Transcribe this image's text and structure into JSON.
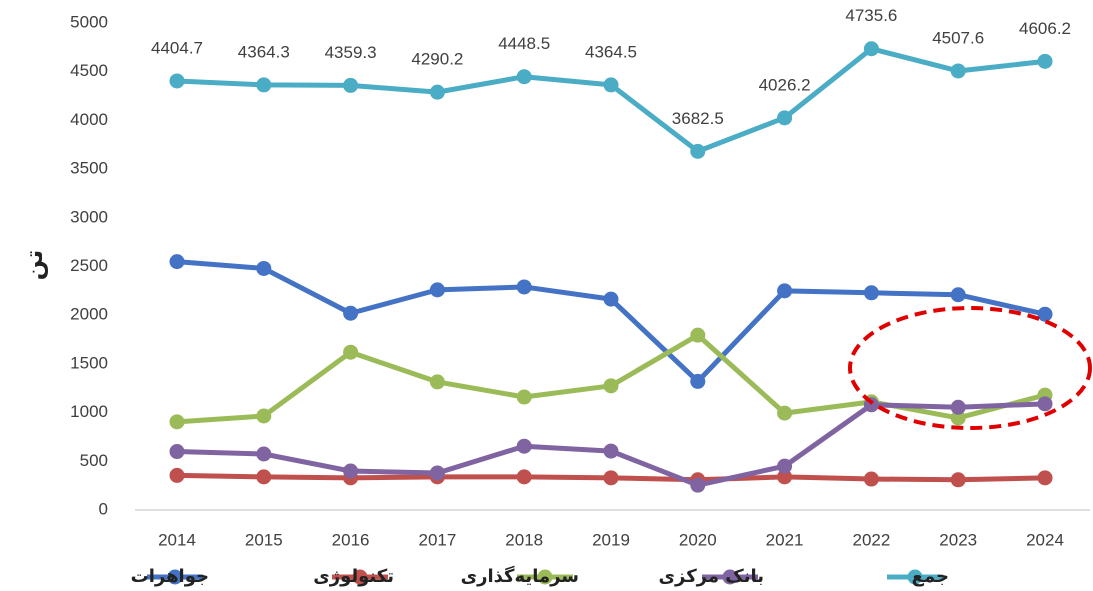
{
  "chart_data": {
    "type": "line",
    "y_label": "تن",
    "x": [
      2014,
      2015,
      2016,
      2017,
      2018,
      2019,
      2020,
      2021,
      2022,
      2023,
      2024
    ],
    "ylim": [
      0,
      5000
    ],
    "yticks": [
      0,
      500,
      1000,
      1500,
      2000,
      2500,
      3000,
      3500,
      4000,
      4500,
      5000
    ],
    "grid": false,
    "series": [
      {
        "name": "جواهرات",
        "color": "#4472c4",
        "values": [
          2550,
          2480,
          2020,
          2260,
          2290,
          2165,
          1320,
          2250,
          2230,
          2210,
          2010
        ]
      },
      {
        "name": "تکنولوژی",
        "color": "#c0504d",
        "values": [
          355,
          340,
          330,
          340,
          340,
          330,
          310,
          340,
          318,
          310,
          330
        ]
      },
      {
        "name": "سرمایه‌گذاری",
        "color": "#9bbb59",
        "values": [
          905,
          965,
          1620,
          1315,
          1160,
          1275,
          1795,
          995,
          1110,
          945,
          1180
        ]
      },
      {
        "name": "بانک مرکزی",
        "color": "#8064a2",
        "values": [
          600,
          575,
          400,
          380,
          655,
          605,
          255,
          450,
          1080,
          1055,
          1090
        ]
      },
      {
        "name": "جمع",
        "color": "#4bacc6",
        "values": [
          4404.7,
          4364.3,
          4359.3,
          4290.2,
          4448.5,
          4364.5,
          3682.5,
          4026.2,
          4735.6,
          4507.6,
          4606.2
        ],
        "show_values": true
      }
    ]
  }
}
